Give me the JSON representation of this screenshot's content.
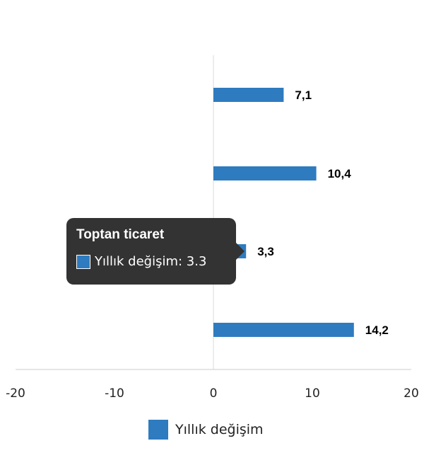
{
  "chart_data": {
    "type": "bar",
    "orientation": "horizontal",
    "categories": [
      "",
      "",
      "Toptan ticaret",
      ""
    ],
    "series": [
      {
        "name": "Yıllık değişim",
        "values": [
          7.1,
          10.4,
          3.3,
          14.2
        ],
        "color": "#2e7bbf"
      }
    ],
    "data_labels": [
      "7,1",
      "10,4",
      "3,3",
      "14,2"
    ],
    "xlim": [
      -20,
      20
    ],
    "x_ticks": [
      "-20",
      "-10",
      "0",
      "10",
      "20"
    ],
    "grid": false,
    "legend": {
      "position": "bottom",
      "label": "Yıllık değişim"
    }
  },
  "tooltip": {
    "title": "Toptan ticaret",
    "text": "Yıllık değişim: 3.3"
  }
}
